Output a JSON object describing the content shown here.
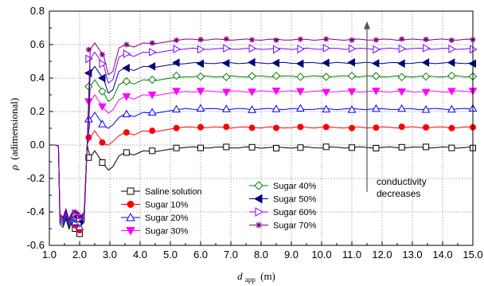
{
  "chart_data": {
    "type": "line",
    "xlabel": "d_app (m)",
    "xlabel_main": "d",
    "xlabel_sub": "app",
    "xlabel_unit": "(m)",
    "ylabel": "ρ (adimensional)",
    "ylabel_symbol": "ρ",
    "ylabel_text": "(adimensional)",
    "xlim": [
      1.0,
      15.0
    ],
    "ylim": [
      -0.6,
      0.8
    ],
    "xticks": [
      "1.0",
      "2.0",
      "3.0",
      "4.0",
      "5.0",
      "6.0",
      "7.0",
      "8.0",
      "9.0",
      "10.0",
      "11.0",
      "12.0",
      "13.0",
      "14.0",
      "15.0"
    ],
    "yticks": [
      "-0.6",
      "-0.4",
      "-0.2",
      "0.0",
      "0.2",
      "0.4",
      "0.6",
      "0.8"
    ],
    "grid": true,
    "legend_position": "bottom-center",
    "annotation": {
      "lines": [
        "conductivity",
        "decreases"
      ],
      "arrow_x": 11.5,
      "arrow_from_y": -0.28,
      "arrow_to_y": 0.74
    },
    "transient": {
      "x": [
        1.05,
        1.2,
        1.3,
        1.35,
        1.45,
        1.55,
        1.65,
        1.75,
        1.85,
        1.95,
        2.05,
        2.15,
        2.25
      ],
      "y": [
        0.0,
        0.0,
        -0.005,
        -0.43,
        -0.45,
        -0.4,
        -0.46,
        -0.42,
        -0.45,
        -0.43,
        -0.44,
        -0.42,
        0.0
      ]
    },
    "series": [
      {
        "name": "Saline solution",
        "color": "#000000",
        "marker": "square",
        "plateau": -0.015,
        "dip": -0.15,
        "min": -0.53
      },
      {
        "name": "Sugar 10%",
        "color": "#ff0000",
        "marker": "circle",
        "plateau": 0.105,
        "dip": 0.0,
        "min": -0.51
      },
      {
        "name": "Sugar 20%",
        "color": "#0000ff",
        "marker": "triangle-up",
        "plateau": 0.215,
        "dip": 0.1,
        "min": -0.49
      },
      {
        "name": "Sugar 30%",
        "color": "#ff00ff",
        "marker": "triangle-down",
        "plateau": 0.32,
        "dip": 0.19,
        "min": -0.47
      },
      {
        "name": "Sugar 40%",
        "color": "#008000",
        "marker": "diamond",
        "plateau": 0.41,
        "dip": 0.26,
        "min": -0.46
      },
      {
        "name": "Sugar 50%",
        "color": "#000080",
        "marker": "triangle-left",
        "plateau": 0.49,
        "dip": 0.31,
        "min": -0.45
      },
      {
        "name": "Sugar 60%",
        "color": "#8000ff",
        "marker": "triangle-right",
        "plateau": 0.575,
        "dip": 0.37,
        "min": -0.44
      },
      {
        "name": "Sugar 70%",
        "color": "#800080",
        "marker": "star",
        "plateau": 0.63,
        "dip": 0.42,
        "min": -0.43
      }
    ]
  }
}
